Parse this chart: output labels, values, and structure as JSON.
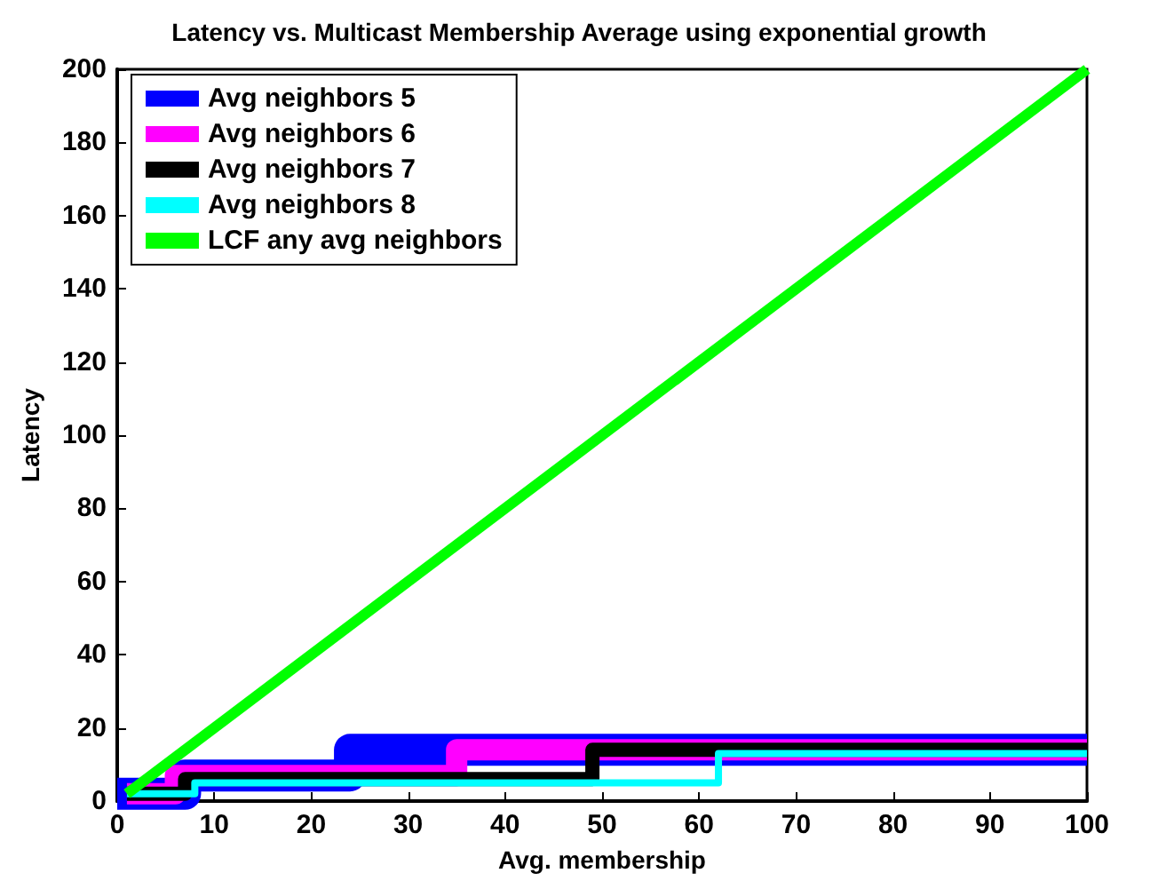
{
  "chart_data": {
    "type": "step",
    "title": "Latency vs. Multicast Membership Average using exponential growth",
    "xlabel": "Avg. membership",
    "ylabel": "Latency",
    "xlim": [
      0,
      100
    ],
    "xticks": [
      0,
      10,
      20,
      30,
      40,
      50,
      60,
      70,
      80,
      90,
      100
    ],
    "ylim": [
      0,
      200
    ],
    "yticks": [
      0,
      20,
      40,
      60,
      80,
      100,
      120,
      140,
      160,
      180,
      200
    ],
    "grid": false,
    "legend": "top left",
    "marker": "none",
    "line_style": "solid",
    "series": [
      {
        "name": "Avg neighbors 5",
        "color": "#0000ff",
        "x": [
          0,
          7,
          24,
          100
        ],
        "values": [
          2,
          7,
          14,
          14
        ]
      },
      {
        "name": "Avg neighbors 6",
        "color": "#ff00ff",
        "x": [
          1,
          6,
          35,
          100
        ],
        "values": [
          2,
          7,
          14,
          14
        ]
      },
      {
        "name": "Avg neighbors 7",
        "color": "#000000",
        "x": [
          1,
          7,
          49,
          100
        ],
        "values": [
          2,
          6,
          14,
          14
        ]
      },
      {
        "name": "Avg neighbors 8",
        "color": "#00ffff",
        "x": [
          1,
          8,
          62,
          100
        ],
        "values": [
          2,
          5,
          13,
          13
        ]
      },
      {
        "name": "LCF any avg neighbors",
        "type": "line",
        "color": "#00ff00",
        "x": [
          1,
          100
        ],
        "values": [
          2,
          200
        ]
      }
    ]
  }
}
